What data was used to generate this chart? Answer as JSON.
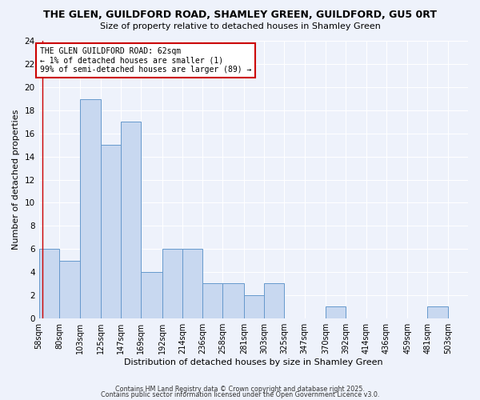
{
  "title": "THE GLEN, GUILDFORD ROAD, SHAMLEY GREEN, GUILDFORD, GU5 0RT",
  "subtitle": "Size of property relative to detached houses in Shamley Green",
  "xlabel": "Distribution of detached houses by size in Shamley Green",
  "ylabel": "Number of detached properties",
  "bar_color": "#c8d8f0",
  "bar_edge_color": "#6699cc",
  "background_color": "#eef2fb",
  "annotation_text": "THE GLEN GUILDFORD ROAD: 62sqm\n← 1% of detached houses are smaller (1)\n99% of semi-detached houses are larger (89) →",
  "annotation_box_color": "#ffffff",
  "annotation_box_edge": "#cc0000",
  "vertical_line_color": "#cc0000",
  "vertical_line_x": 62,
  "categories": [
    "58sqm",
    "80sqm",
    "103sqm",
    "125sqm",
    "147sqm",
    "169sqm",
    "192sqm",
    "214sqm",
    "236sqm",
    "258sqm",
    "281sqm",
    "303sqm",
    "325sqm",
    "347sqm",
    "370sqm",
    "392sqm",
    "414sqm",
    "436sqm",
    "459sqm",
    "481sqm",
    "503sqm"
  ],
  "bin_edges": [
    58,
    80,
    103,
    125,
    147,
    169,
    192,
    214,
    236,
    258,
    281,
    303,
    325,
    347,
    370,
    392,
    414,
    436,
    459,
    481,
    503,
    525
  ],
  "values": [
    6,
    5,
    19,
    15,
    17,
    4,
    6,
    6,
    3,
    3,
    2,
    3,
    0,
    0,
    1,
    0,
    0,
    0,
    0,
    1,
    0
  ],
  "ylim": [
    0,
    24
  ],
  "yticks": [
    0,
    2,
    4,
    6,
    8,
    10,
    12,
    14,
    16,
    18,
    20,
    22,
    24
  ],
  "footer_line1": "Contains HM Land Registry data © Crown copyright and database right 2025.",
  "footer_line2": "Contains public sector information licensed under the Open Government Licence v3.0."
}
